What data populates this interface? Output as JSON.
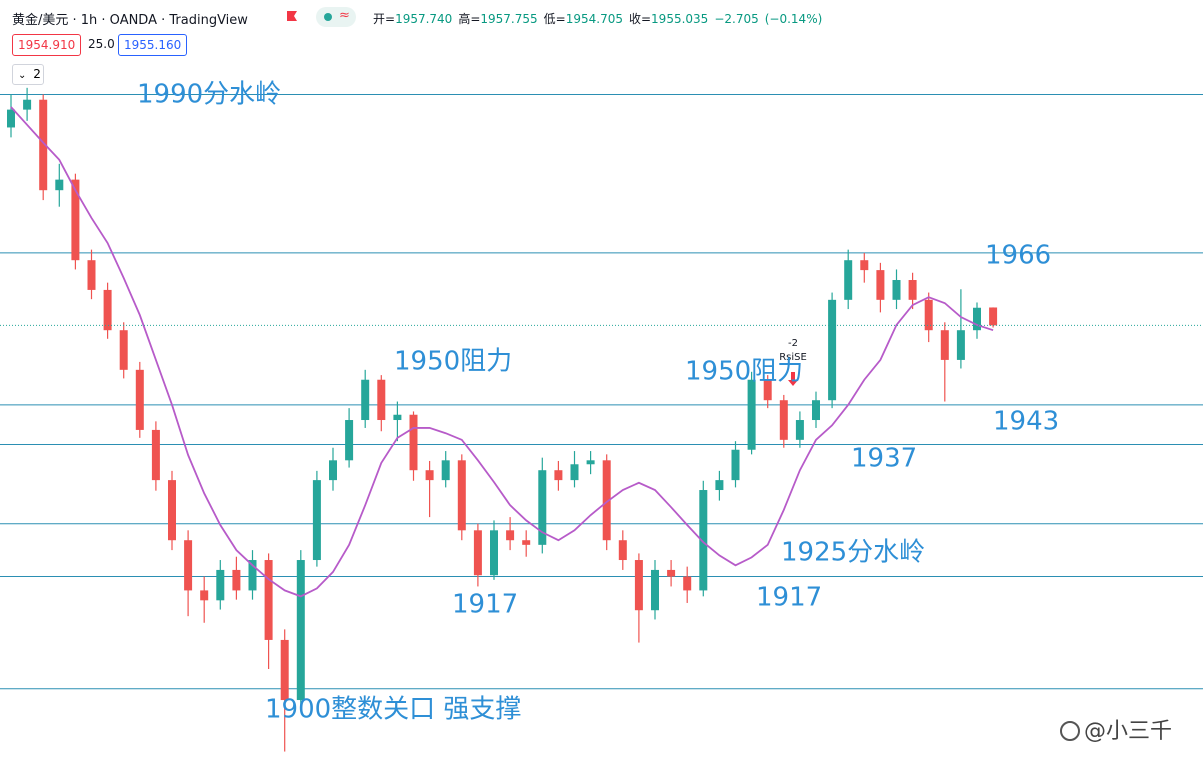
{
  "chart_data": {
    "type": "candlestick",
    "title": "黄金/美元 · 1h · OANDA · TradingView",
    "ohlc_legend": [
      {
        "name": "开=",
        "value": 1957.74,
        "label": "1957.740"
      },
      {
        "name": "高=",
        "value": 1957.755,
        "label": "1957.755"
      },
      {
        "name": "低=",
        "value": 1954.705,
        "label": "1954.705"
      },
      {
        "name": "收=",
        "value": 1955.035,
        "label": "1955.035"
      }
    ],
    "change": {
      "value": -2.705,
      "label": "−2.705"
    },
    "change_pct": {
      "value": -0.14,
      "label": "(−0.14%)"
    },
    "quotes": {
      "bid": {
        "value": 1954.91,
        "label": "1954.910"
      },
      "spread": {
        "value": 25,
        "label": "25.0"
      },
      "ask": {
        "value": 1955.16,
        "label": "1955.160"
      }
    },
    "indicators_hidden": 2,
    "up_color": "#26a69a",
    "down_color": "#ef5350",
    "ylim": [
      1887.1,
      2004.3
    ],
    "candles": [
      [
        1985.0,
        1990.0,
        1983.5,
        1987.7
      ],
      [
        1987.7,
        1991.0,
        1986.0,
        1989.2
      ],
      [
        1989.2,
        1990.0,
        1974.0,
        1975.5
      ],
      [
        1975.5,
        1979.5,
        1973.0,
        1977.1
      ],
      [
        1977.1,
        1978.0,
        1963.5,
        1964.9
      ],
      [
        1964.9,
        1966.5,
        1959.0,
        1960.4
      ],
      [
        1960.4,
        1961.5,
        1953.0,
        1954.3
      ],
      [
        1954.3,
        1955.5,
        1947.0,
        1948.3
      ],
      [
        1948.3,
        1949.5,
        1938.0,
        1939.2
      ],
      [
        1939.2,
        1940.5,
        1930.0,
        1931.6
      ],
      [
        1931.6,
        1933.0,
        1921.0,
        1922.5
      ],
      [
        1922.5,
        1924.0,
        1911.0,
        1914.9
      ],
      [
        1914.9,
        1917.0,
        1910.0,
        1913.4
      ],
      [
        1913.4,
        1919.5,
        1912.0,
        1918.0
      ],
      [
        1918.0,
        1920.0,
        1913.5,
        1914.9
      ],
      [
        1914.9,
        1921.0,
        1913.5,
        1919.5
      ],
      [
        1919.5,
        1920.5,
        1903.0,
        1907.4
      ],
      [
        1907.4,
        1909.0,
        1890.5,
        1898.3
      ],
      [
        1898.3,
        1921.0,
        1897.0,
        1919.5
      ],
      [
        1919.5,
        1933.0,
        1918.5,
        1931.6
      ],
      [
        1931.6,
        1936.5,
        1930.0,
        1934.6
      ],
      [
        1934.6,
        1942.5,
        1933.5,
        1940.7
      ],
      [
        1940.7,
        1948.3,
        1939.5,
        1946.8
      ],
      [
        1946.8,
        1947.5,
        1939.0,
        1940.7
      ],
      [
        1940.7,
        1943.5,
        1937.5,
        1941.5
      ],
      [
        1941.5,
        1942.0,
        1931.5,
        1933.1
      ],
      [
        1933.1,
        1934.5,
        1926.0,
        1931.6
      ],
      [
        1931.6,
        1936.0,
        1930.5,
        1934.6
      ],
      [
        1934.6,
        1935.5,
        1922.5,
        1924.0
      ],
      [
        1924.0,
        1925.0,
        1915.5,
        1917.2
      ],
      [
        1917.2,
        1925.5,
        1916.5,
        1924.0
      ],
      [
        1924.0,
        1926.0,
        1921.0,
        1922.5
      ],
      [
        1922.5,
        1924.0,
        1920.0,
        1921.8
      ],
      [
        1921.8,
        1935.0,
        1920.5,
        1933.1
      ],
      [
        1933.1,
        1934.5,
        1930.0,
        1931.6
      ],
      [
        1931.6,
        1936.0,
        1930.5,
        1934.0
      ],
      [
        1934.0,
        1936.0,
        1932.5,
        1934.6
      ],
      [
        1934.6,
        1935.5,
        1921.0,
        1922.5
      ],
      [
        1922.5,
        1924.0,
        1918.0,
        1919.5
      ],
      [
        1919.5,
        1920.5,
        1907.0,
        1911.9
      ],
      [
        1911.9,
        1919.5,
        1910.5,
        1918.0
      ],
      [
        1918.0,
        1919.5,
        1915.5,
        1917.0
      ],
      [
        1917.0,
        1918.5,
        1913.0,
        1914.9
      ],
      [
        1914.9,
        1931.5,
        1914.0,
        1930.1
      ],
      [
        1930.1,
        1933.0,
        1928.5,
        1931.6
      ],
      [
        1931.6,
        1937.5,
        1930.5,
        1936.2
      ],
      [
        1936.2,
        1948.0,
        1935.5,
        1946.8
      ],
      [
        1946.8,
        1947.5,
        1942.5,
        1943.7
      ],
      [
        1943.7,
        1944.5,
        1936.5,
        1937.7
      ],
      [
        1937.7,
        1942.0,
        1936.5,
        1940.7
      ],
      [
        1940.7,
        1945.0,
        1939.5,
        1943.7
      ],
      [
        1943.7,
        1960.0,
        1942.5,
        1958.9
      ],
      [
        1958.9,
        1966.5,
        1957.5,
        1964.9
      ],
      [
        1964.9,
        1966.0,
        1961.5,
        1963.4
      ],
      [
        1963.4,
        1964.5,
        1957.0,
        1958.9
      ],
      [
        1958.9,
        1963.5,
        1957.5,
        1961.9
      ],
      [
        1961.9,
        1963.0,
        1957.5,
        1958.9
      ],
      [
        1958.9,
        1960.0,
        1952.5,
        1954.3
      ],
      [
        1954.3,
        1955.5,
        1943.5,
        1949.8
      ],
      [
        1949.8,
        1960.5,
        1948.5,
        1954.3
      ],
      [
        1954.3,
        1958.5,
        1953.0,
        1957.7
      ],
      [
        1957.74,
        1957.755,
        1954.705,
        1955.035
      ]
    ],
    "ma": {
      "color": "#b75bc9",
      "values": [
        1988.1,
        1985.4,
        1982.7,
        1980.1,
        1975.5,
        1971.3,
        1967.5,
        1962.2,
        1956.6,
        1949.8,
        1943.0,
        1935.4,
        1929.6,
        1924.8,
        1921.0,
        1918.7,
        1916.6,
        1914.9,
        1914.0,
        1915.2,
        1917.7,
        1921.8,
        1927.8,
        1934.2,
        1938.0,
        1939.5,
        1939.5,
        1938.7,
        1937.7,
        1934.6,
        1931.3,
        1927.8,
        1925.5,
        1923.7,
        1922.5,
        1924.0,
        1926.3,
        1928.3,
        1930.1,
        1931.2,
        1930.1,
        1927.5,
        1924.8,
        1922.2,
        1920.2,
        1918.7,
        1919.9,
        1921.8,
        1927.1,
        1933.1,
        1937.7,
        1939.9,
        1943.0,
        1946.8,
        1949.8,
        1955.1,
        1958.1,
        1959.3,
        1958.4,
        1956.3,
        1955.1,
        1954.3
      ]
    },
    "hline_color": "#2b8fb3",
    "hlines": [
      1990,
      1966,
      1943,
      1937,
      1925,
      1917,
      1900
    ],
    "annotations": [
      "1990分水岭",
      "1966",
      "1950阻力",
      "1950阻力",
      "1943",
      "1937",
      "1925分水岭",
      "1917",
      "1917",
      "1900整数关口 强支撑"
    ],
    "signal": {
      "count": "-2",
      "name": "RsiSE"
    },
    "watermark": "@小三千"
  }
}
